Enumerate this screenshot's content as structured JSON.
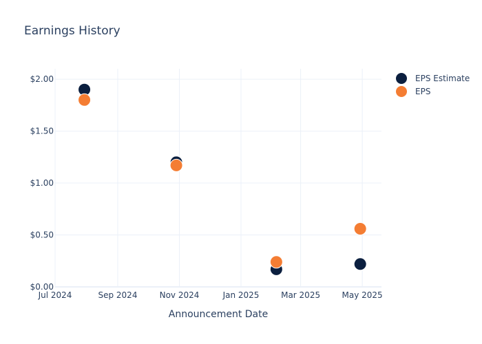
{
  "chart_data": {
    "type": "scatter",
    "title": "Earnings History",
    "xlabel": "Announcement Date",
    "ylabel": "",
    "x_axis": {
      "type": "date",
      "range": [
        "2024-07-01",
        "2025-05-20"
      ],
      "ticks": [
        {
          "date": "2024-07-01",
          "label": "Jul 2024"
        },
        {
          "date": "2024-09-01",
          "label": "Sep 2024"
        },
        {
          "date": "2024-11-01",
          "label": "Nov 2024"
        },
        {
          "date": "2025-01-01",
          "label": "Jan 2025"
        },
        {
          "date": "2025-03-01",
          "label": "Mar 2025"
        },
        {
          "date": "2025-05-01",
          "label": "May 2025"
        }
      ]
    },
    "y_axis": {
      "range": [
        0,
        2.1
      ],
      "ticks": [
        {
          "value": 0,
          "label": "$0.00"
        },
        {
          "value": 0.5,
          "label": "$0.50"
        },
        {
          "value": 1.0,
          "label": "$1.00"
        },
        {
          "value": 1.5,
          "label": "$1.50"
        },
        {
          "value": 2.0,
          "label": "$2.00"
        }
      ]
    },
    "grid": true,
    "legend_position": "top-right",
    "series": [
      {
        "name": "EPS Estimate",
        "color": "#0b1f3f",
        "points": [
          {
            "x": "2024-07-30",
            "y": 1.9
          },
          {
            "x": "2024-10-29",
            "y": 1.2
          },
          {
            "x": "2025-02-05",
            "y": 0.17
          },
          {
            "x": "2025-04-29",
            "y": 0.22
          }
        ]
      },
      {
        "name": "EPS",
        "color": "#f47d33",
        "points": [
          {
            "x": "2024-07-30",
            "y": 1.8
          },
          {
            "x": "2024-10-29",
            "y": 1.17
          },
          {
            "x": "2025-02-05",
            "y": 0.24
          },
          {
            "x": "2025-04-29",
            "y": 0.56
          }
        ]
      }
    ]
  }
}
